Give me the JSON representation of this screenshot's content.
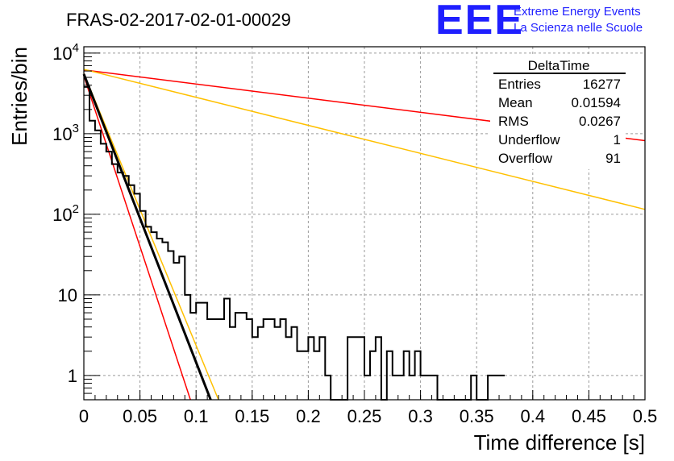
{
  "chart_data": {
    "type": "line",
    "title": "FRAS-02-2017-02-01-00029",
    "xlabel": "Time difference [s]",
    "ylabel": "Entries/bin",
    "xlim": [
      0,
      0.5
    ],
    "ylim": [
      0.5,
      12000
    ],
    "y_scale": "log",
    "grid": true,
    "x_ticks": [
      "0",
      "0.05",
      "0.1",
      "0.15",
      "0.2",
      "0.25",
      "0.3",
      "0.35",
      "0.4",
      "0.45",
      "0.5"
    ],
    "y_ticks": [
      {
        "value": 1,
        "label": "1"
      },
      {
        "value": 10,
        "label": "10"
      },
      {
        "value": 100,
        "label": "10",
        "exp": "2"
      },
      {
        "value": 1000,
        "label": "10",
        "exp": "3"
      },
      {
        "value": 10000,
        "label": "10",
        "exp": "4"
      }
    ],
    "histogram": {
      "bin_width": 0.005,
      "color": "#000000",
      "counts": [
        3800,
        1450,
        1100,
        750,
        600,
        420,
        330,
        300,
        230,
        180,
        110,
        70,
        60,
        50,
        45,
        35,
        25,
        30,
        10,
        6,
        8,
        8,
        5,
        5,
        5,
        9,
        4,
        6,
        6,
        5,
        3,
        4,
        5,
        5,
        4,
        5,
        3,
        4,
        2,
        2,
        3,
        2,
        3,
        1,
        0.1,
        0.1,
        0.1,
        3,
        3,
        3,
        1,
        2,
        3,
        0.1,
        2,
        1,
        1,
        2,
        1,
        2,
        1,
        1,
        1,
        0.1,
        0.1,
        0.1,
        0.1,
        0.1,
        0.1,
        1,
        0.1,
        0.1,
        1,
        1,
        1
      ]
    },
    "series": [
      {
        "color": "#ff0000",
        "width": 1.5,
        "points": [
          [
            0,
            6200
          ],
          [
            0.5,
            820
          ]
        ]
      },
      {
        "color": "#ffc000",
        "width": 1.5,
        "points": [
          [
            0,
            6300
          ],
          [
            0.5,
            115
          ]
        ]
      },
      {
        "color": "#ff0000",
        "width": 1.5,
        "points": [
          [
            0,
            5200
          ],
          [
            0.095,
            0.5
          ]
        ]
      },
      {
        "color": "#ffc000",
        "width": 1.5,
        "points": [
          [
            0,
            5600
          ],
          [
            0.12,
            0.5
          ]
        ]
      },
      {
        "color": "#000000",
        "width": 3,
        "points": [
          [
            0,
            5500
          ],
          [
            0.113,
            0.5
          ]
        ]
      }
    ],
    "stats_box": {
      "title": "DeltaTime",
      "rows": [
        {
          "label": "Entries",
          "value": "16277"
        },
        {
          "label": "Mean",
          "value": "0.01594"
        },
        {
          "label": "RMS",
          "value": "0.0267"
        },
        {
          "label": "Underflow",
          "value": "1"
        },
        {
          "label": "Overflow",
          "value": "91"
        }
      ]
    }
  },
  "logo": {
    "letters": "EEE",
    "line1": "Extreme Energy Events",
    "line2": "La Scienza nelle Scuole",
    "color": "#1f1fff"
  }
}
